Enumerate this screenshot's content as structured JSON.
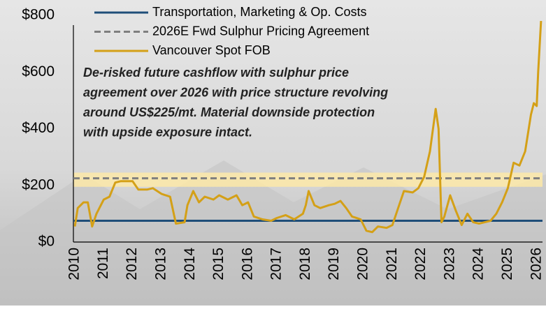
{
  "chart_data": {
    "type": "line",
    "xlim": [
      2009.95,
      2026.2
    ],
    "xticks": [
      2010,
      2011,
      2012,
      2013,
      2014,
      2015,
      2016,
      2017,
      2018,
      2019,
      2020,
      2021,
      2022,
      2023,
      2024,
      2025,
      2026
    ],
    "ylim": [
      0,
      800
    ],
    "yticks": [
      {
        "value": 0,
        "label": "$0"
      },
      {
        "value": 200,
        "label": "$200"
      },
      {
        "value": 400,
        "label": "$400"
      },
      {
        "value": 600,
        "label": "$600"
      },
      {
        "value": 800,
        "label": "$800"
      }
    ],
    "band": [
      195,
      245
    ],
    "annotation": [
      "De-risked future cashflow with sulphur price",
      "agreement over 2026 with price structure revolving",
      "around US$225/mt. Material downside protection",
      "with upside exposure intact."
    ],
    "series": [
      {
        "name": "Transportation, Marketing & Op. Costs",
        "color": "#1f4e79",
        "dashed": false,
        "x": [
          2009.95,
          2026.2
        ],
        "values": [
          75,
          75
        ]
      },
      {
        "name": "2026E Fwd Sulphur Pricing Agreement",
        "color": "#7f7f7f",
        "dashed": true,
        "x": [
          2009.95,
          2026.2
        ],
        "values": [
          225,
          225
        ]
      },
      {
        "name": "Vancouver Spot FOB",
        "color": "#d4a017",
        "dashed": false,
        "x": [
          2010.0,
          2010.1,
          2010.3,
          2010.45,
          2010.6,
          2010.75,
          2011.0,
          2011.2,
          2011.4,
          2011.6,
          2012.0,
          2012.2,
          2012.5,
          2012.7,
          2013.0,
          2013.3,
          2013.5,
          2013.8,
          2013.9,
          2014.1,
          2014.3,
          2014.5,
          2014.8,
          2015.0,
          2015.3,
          2015.6,
          2015.8,
          2016.0,
          2016.2,
          2016.5,
          2016.8,
          2017.0,
          2017.3,
          2017.6,
          2017.9,
          2018.0,
          2018.1,
          2018.3,
          2018.5,
          2018.8,
          2019.0,
          2019.2,
          2019.4,
          2019.6,
          2019.9,
          2020.1,
          2020.3,
          2020.5,
          2020.8,
          2021.0,
          2021.2,
          2021.4,
          2021.7,
          2021.9,
          2022.1,
          2022.3,
          2022.5,
          2022.6,
          2022.7,
          2022.8,
          2023.0,
          2023.2,
          2023.4,
          2023.6,
          2023.8,
          2024.0,
          2024.2,
          2024.4,
          2024.6,
          2024.8,
          2025.0,
          2025.2,
          2025.4,
          2025.6,
          2025.8,
          2025.9,
          2026.0,
          2026.05,
          2026.15
        ],
        "values": [
          55,
          120,
          140,
          140,
          55,
          100,
          150,
          160,
          210,
          215,
          215,
          185,
          185,
          190,
          170,
          160,
          65,
          70,
          130,
          180,
          140,
          160,
          150,
          165,
          150,
          165,
          130,
          140,
          90,
          80,
          75,
          85,
          95,
          80,
          100,
          130,
          180,
          130,
          120,
          130,
          135,
          145,
          120,
          90,
          80,
          40,
          35,
          55,
          50,
          60,
          120,
          180,
          175,
          190,
          230,
          320,
          470,
          400,
          70,
          90,
          165,
          110,
          60,
          100,
          70,
          65,
          70,
          75,
          100,
          140,
          190,
          280,
          270,
          320,
          450,
          490,
          480,
          600,
          780
        ]
      }
    ]
  }
}
